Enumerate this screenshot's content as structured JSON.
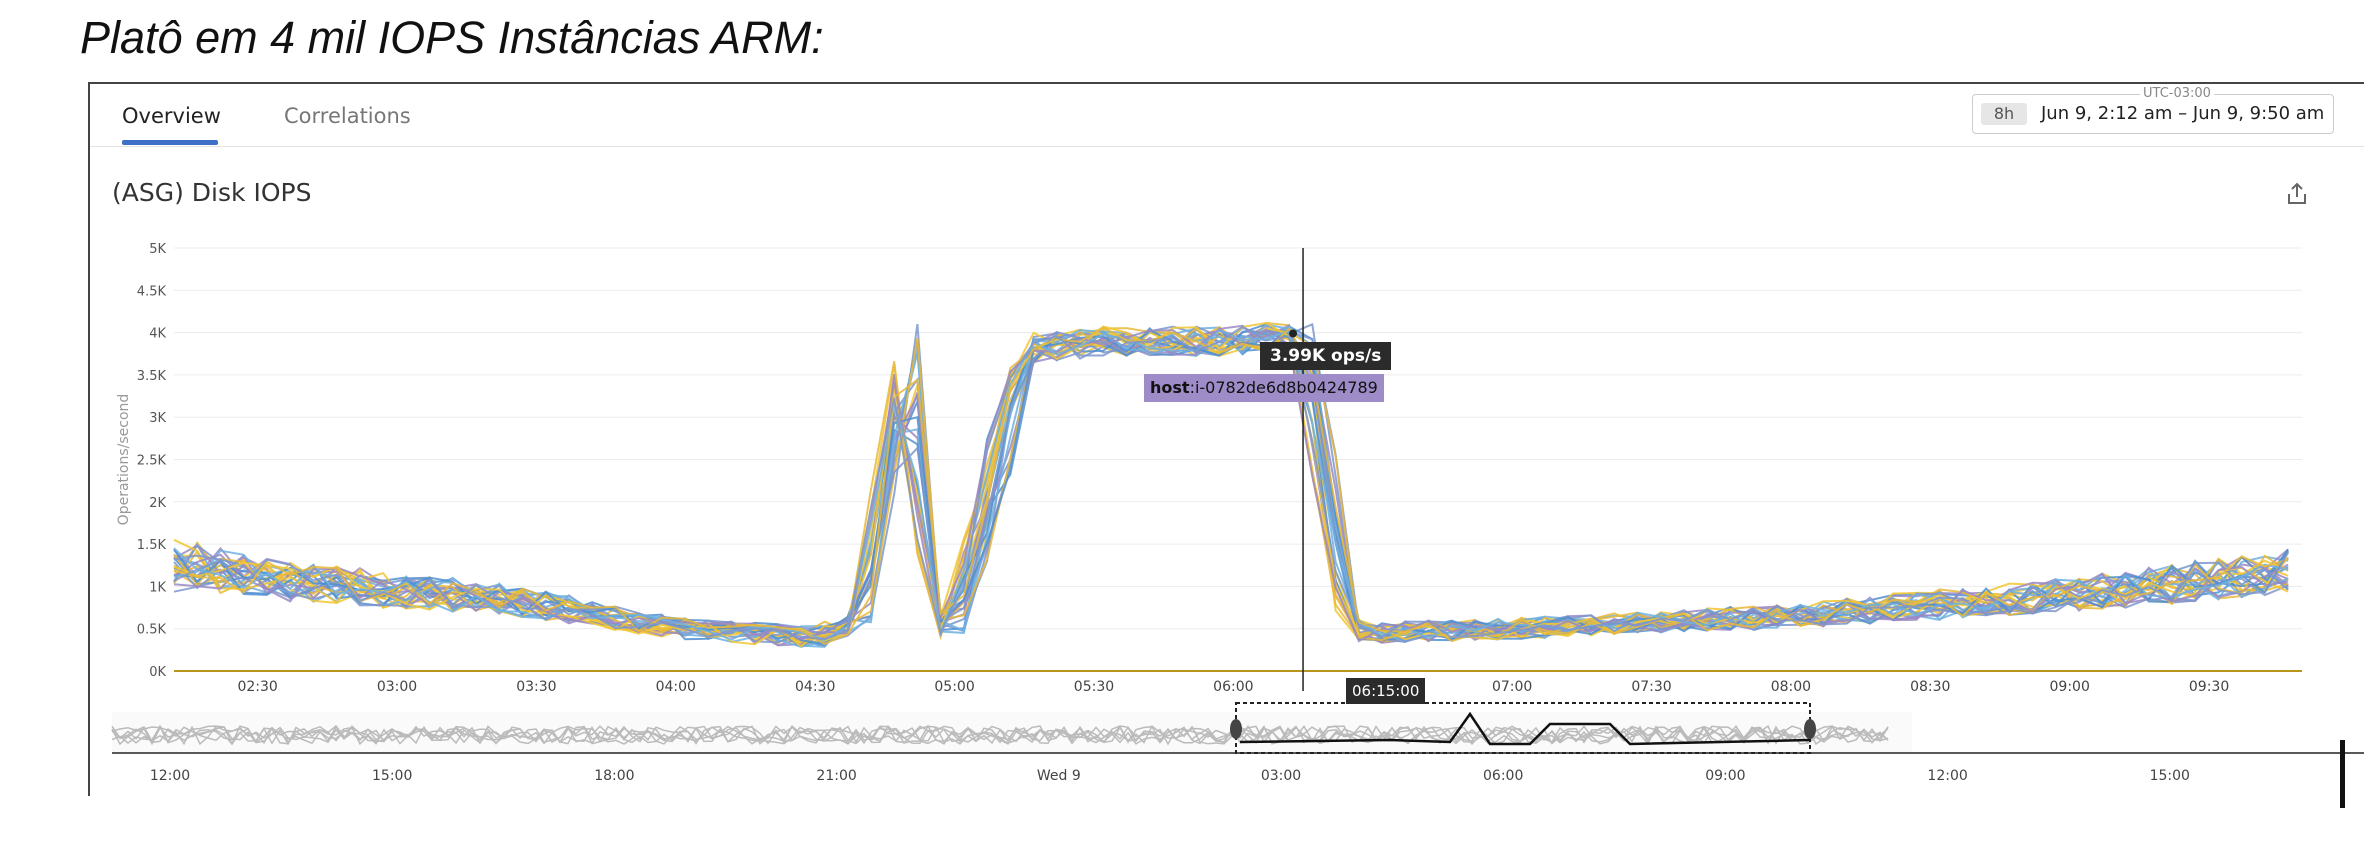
{
  "heading": "Platô em 4 mil IOPS Instâncias ARM:",
  "tabs": [
    {
      "label": "Overview",
      "active": true
    },
    {
      "label": "Correlations",
      "active": false
    }
  ],
  "time_range": {
    "timezone": "UTC-03:00",
    "duration_chip": "8h",
    "range": "Jun 9, 2:12 am – Jun 9, 9:50 am"
  },
  "widget": {
    "title": "(ASG) Disk IOPS",
    "export_icon": "share-export-icon"
  },
  "tooltip": {
    "value": "3.99K ops/s",
    "host_key": "host",
    "host_value": ":i-0782de6d8b0424789",
    "crosshair_time": "06:15:00"
  },
  "colors": {
    "series": [
      "#4f8fd0",
      "#f2c633",
      "#9a88c4",
      "#6fb0e0",
      "#e8b83a",
      "#7d96cc"
    ],
    "baseline": "#b8961c",
    "accent": "#3f6fc4"
  },
  "chart_data": {
    "type": "line",
    "ylabel": "Operations/second",
    "y_ticks": [
      "0K",
      "0.5K",
      "1K",
      "1.5K",
      "2K",
      "2.5K",
      "3K",
      "3.5K",
      "4K",
      "4.5K",
      "5K"
    ],
    "ylim": [
      0,
      5000
    ],
    "x_ticks": [
      "02:30",
      "03:00",
      "03:30",
      "04:00",
      "04:30",
      "05:00",
      "05:30",
      "06:00",
      "06:30",
      "07:00",
      "07:30",
      "08:00",
      "08:30",
      "09:00",
      "09:30"
    ],
    "xlim": [
      "02:12",
      "09:50"
    ],
    "crosshair_x": "06:15",
    "hovered_point": {
      "x": "06:15",
      "y": 3990
    },
    "series_profile": {
      "name": "Disk IOPS (per host, many hosts)",
      "x": [
        "02:12",
        "02:30",
        "03:00",
        "03:30",
        "04:00",
        "04:30",
        "04:40",
        "04:50",
        "04:55",
        "05:00",
        "05:15",
        "05:30",
        "06:00",
        "06:15",
        "06:25",
        "06:30",
        "07:00",
        "08:00",
        "09:00",
        "09:50"
      ],
      "y": [
        1300,
        1100,
        950,
        800,
        500,
        400,
        600,
        4000,
        600,
        500,
        3800,
        3900,
        3900,
        3990,
        500,
        450,
        500,
        650,
        900,
        1200
      ]
    },
    "overview_x_ticks": [
      "12:00",
      "15:00",
      "18:00",
      "21:00",
      "Wed 9",
      "03:00",
      "06:00",
      "09:00",
      "12:00",
      "15:00"
    ]
  }
}
